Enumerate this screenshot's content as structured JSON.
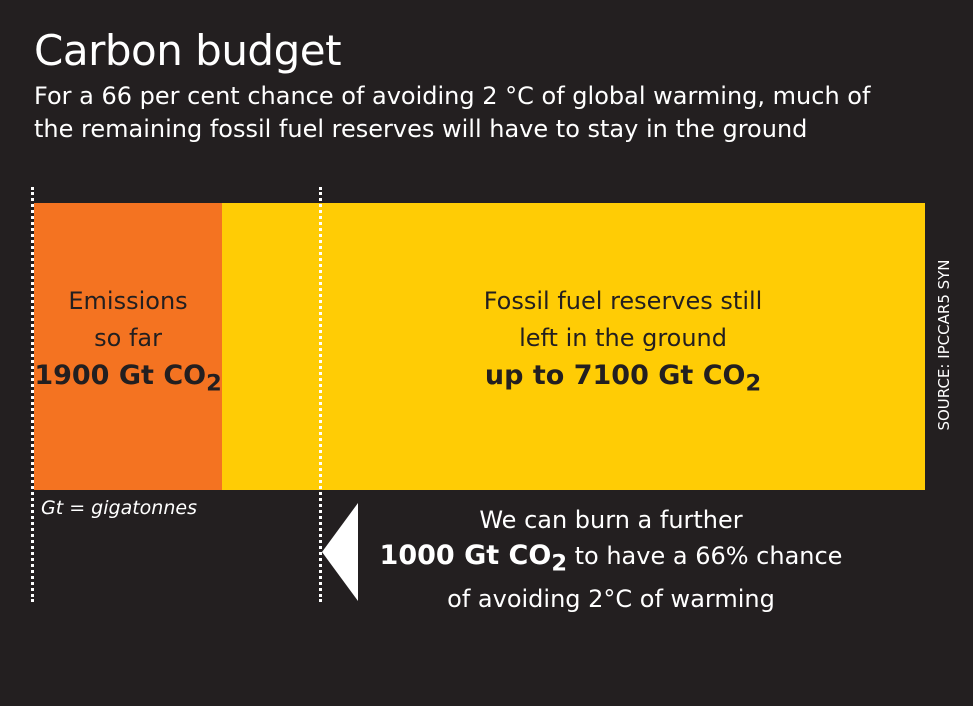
{
  "title": "Carbon budget",
  "subtitle": "For a 66 per cent chance of avoiding 2 °C of global warming, much of the remaining fossil fuel reserves will have to stay in the ground",
  "unit_note": "Gt = gigatonnes",
  "source": "SOURCE: IPCCAR5 SYN",
  "colors": {
    "background": "#231f20",
    "emitted": "#f47321",
    "reserves": "#ffcc05"
  },
  "chart_data": {
    "type": "bar",
    "orientation": "horizontal-stacked",
    "unit": "Gt CO2",
    "segments": [
      {
        "label_line1": "Emissions",
        "label_line2": "so far",
        "value_text": "1900 Gt CO",
        "sub": "2",
        "value": 1900,
        "color": "#f47321"
      },
      {
        "label_line1": "Fossil fuel reserves still",
        "label_line2": "left in the ground",
        "value_text": "up to 7100 Gt CO",
        "sub": "2",
        "value": 7100,
        "color": "#ffcc05"
      }
    ],
    "budget": {
      "value": 1000,
      "line1": "We can burn a further",
      "value_text": "1000 Gt CO",
      "sub": "2",
      "line2_rest": " to have a 66% chance",
      "line3": "of avoiding 2°C of warming"
    }
  }
}
